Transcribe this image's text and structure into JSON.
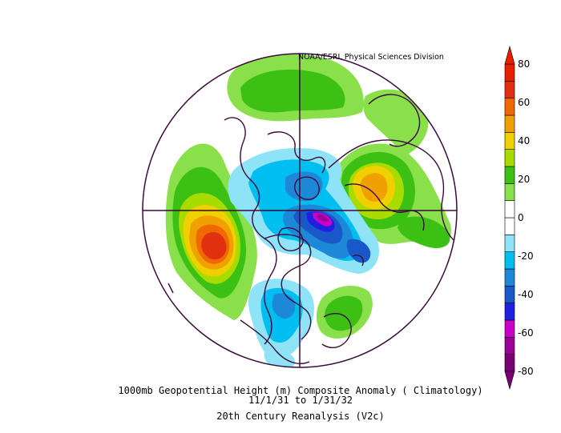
{
  "credit": "NOAA/ESRL Physical Sciences Division",
  "caption": {
    "title": "1000mb Geopotential Height (m) Composite Anomaly ( Climatology)",
    "dates": "11/1/31   to 1/31/32",
    "source": "20th Century Reanalysis (V2c)"
  },
  "colorbar": {
    "ticks": [
      "80",
      "60",
      "40",
      "20",
      "0",
      "-20",
      "-40",
      "-60",
      "-80"
    ],
    "colors": [
      "#7b0074",
      "#9b0097",
      "#c800c8",
      "#2020e0",
      "#1858c8",
      "#1e88d8",
      "#00bef0",
      "#8ee4f6",
      "#ffffff",
      "#ffffff",
      "#8ae04a",
      "#3cc014",
      "#a8dc00",
      "#f0d000",
      "#f0a000",
      "#f06800",
      "#e03010",
      "#e82000"
    ]
  },
  "map": {
    "projection": "north-polar-stereographic",
    "colors": {
      "land": "#ffffff",
      "coast": "#3a0a3a",
      "grid": "#3a0a3a"
    }
  }
}
